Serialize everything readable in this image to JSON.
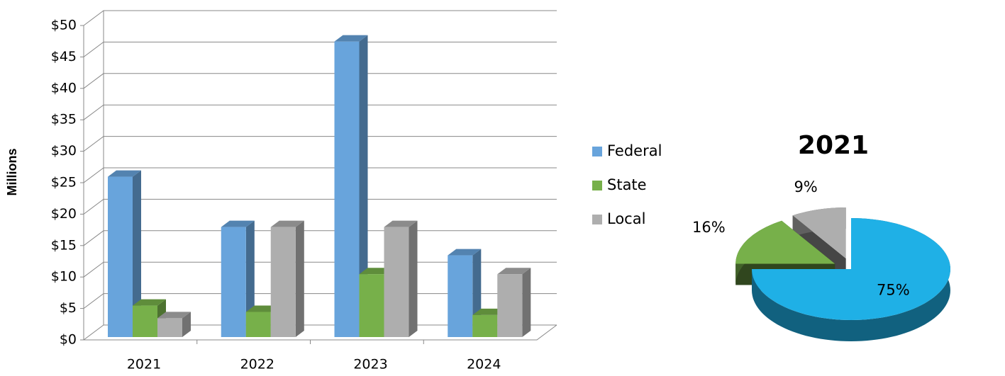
{
  "chart_data": [
    {
      "type": "bar",
      "y_label": "Millions",
      "categories": [
        "2021",
        "2022",
        "2023",
        "2024"
      ],
      "series": [
        {
          "name": "Federal",
          "color": "#68a4dc",
          "values": [
            25.5,
            17.5,
            47,
            13
          ]
        },
        {
          "name": "State",
          "color": "#77b04a",
          "values": [
            5,
            4,
            10,
            3.5
          ]
        },
        {
          "name": "Local",
          "color": "#aeaeae",
          "values": [
            3,
            17.5,
            17.5,
            10
          ]
        }
      ],
      "ylim": [
        0,
        50
      ],
      "yticks": [
        {
          "value": 0,
          "label": "$0"
        },
        {
          "value": 5,
          "label": "$5"
        },
        {
          "value": 10,
          "label": "$10"
        },
        {
          "value": 15,
          "label": "$15"
        },
        {
          "value": 20,
          "label": "$20"
        },
        {
          "value": 25,
          "label": "$25"
        },
        {
          "value": 30,
          "label": "$30"
        },
        {
          "value": 35,
          "label": "$35"
        },
        {
          "value": 40,
          "label": "$40"
        },
        {
          "value": 45,
          "label": "$45"
        },
        {
          "value": 50,
          "label": "$50"
        }
      ],
      "grid": true,
      "legend": "right"
    },
    {
      "type": "pie",
      "title": "2021",
      "values": [
        75,
        16,
        9
      ],
      "value_labels": [
        "75%",
        "16%",
        "9%"
      ],
      "colors": [
        "#1fb0e6",
        "#77b04a",
        "#aeaeae"
      ]
    }
  ]
}
